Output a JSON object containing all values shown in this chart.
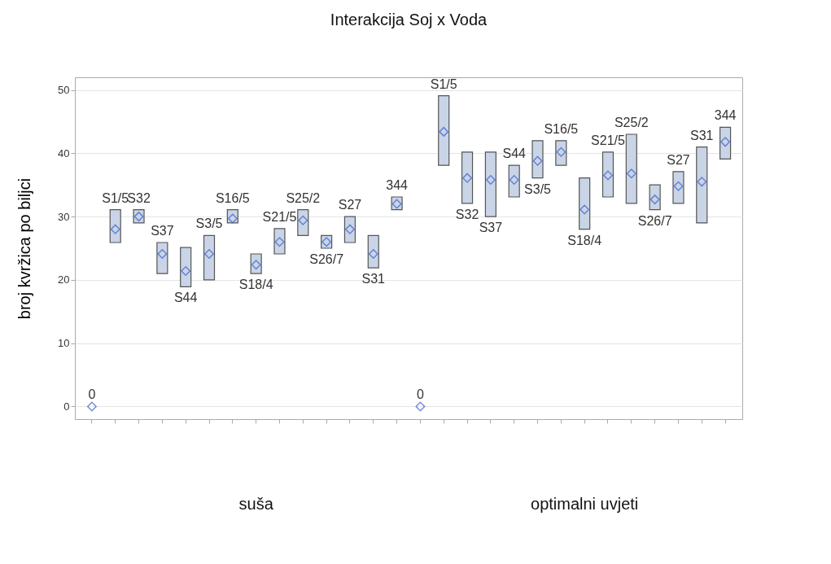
{
  "chart_data": {
    "type": "bar",
    "title": "Interakcija Soj x Voda",
    "ylabel": "broj kvržica po biljci",
    "categories": [
      null,
      null,
      null,
      null,
      null,
      null,
      null,
      null,
      null,
      null,
      null,
      null,
      null,
      null,
      null,
      null,
      null,
      null,
      null,
      null,
      null,
      null,
      null,
      null,
      null,
      null,
      null,
      null
    ],
    "ylim": [
      -2,
      52
    ],
    "yticks": [
      0,
      10,
      20,
      30,
      40,
      50
    ],
    "grid": "y",
    "tick_labels": "y",
    "series": [
      {
        "color": "#c9d5e6",
        "base": [
          null,
          25.9,
          29.0,
          21.0,
          18.9,
          20.0,
          29.0,
          21.0,
          24.1,
          27.0,
          25.0,
          25.9,
          21.9,
          31.1,
          null,
          38.1,
          32.1,
          30.0,
          33.1,
          36.1,
          38.1,
          28.0,
          33.1,
          32.1,
          31.1,
          32.1,
          29.0,
          39.1
        ],
        "values": [
          null,
          5.2,
          2.1,
          4.9,
          6.2,
          7.0,
          2.1,
          3.1,
          4.0,
          4.1,
          2.0,
          4.1,
          5.1,
          2.0,
          null,
          11.0,
          8.1,
          10.2,
          5.0,
          5.9,
          3.9,
          8.1,
          7.1,
          10.9,
          3.9,
          5.0,
          12.0,
          5.0
        ]
      },
      {
        "type": "scatter",
        "marker": "diamond",
        "color": "#3a5fcd",
        "values": [
          0,
          28.0,
          30.0,
          24.1,
          21.4,
          24.1,
          29.7,
          22.4,
          26.0,
          29.4,
          26.0,
          28.0,
          24.1,
          32.0,
          0,
          43.4,
          36.1,
          35.8,
          35.8,
          38.8,
          40.2,
          31.1,
          36.5,
          36.8,
          32.7,
          34.8,
          35.5,
          41.8
        ]
      }
    ],
    "annotations": [
      {
        "text": "0",
        "y": 0
      },
      {
        "text": "S1/5",
        "y": 31.1
      },
      {
        "text": "S32",
        "y": 31.1
      },
      {
        "text": "S37",
        "y": 25.9
      },
      {
        "text": "S44",
        "y": 18.9
      },
      {
        "text": "S3/5",
        "y": 27.0
      },
      {
        "text": "S16/5",
        "y": 31.1
      },
      {
        "text": "S18/4",
        "y": 21.0
      },
      {
        "text": "S21/5",
        "y": 28.1
      },
      {
        "text": "S25/2",
        "y": 31.1
      },
      {
        "text": "S26/7",
        "y": 25.0
      },
      {
        "text": "S27",
        "y": 30.0
      },
      {
        "text": "S31",
        "y": 21.9
      },
      {
        "text": "344",
        "y": 33.1
      },
      {
        "text": "0",
        "y": 0
      },
      {
        "text": "S1/5",
        "y": 49.1
      },
      {
        "text": "S32",
        "y": 32.1
      },
      {
        "text": "S37",
        "y": 30.0
      },
      {
        "text": "S44",
        "y": 38.1
      },
      {
        "text": "S3/5",
        "y": 36.1
      },
      {
        "text": "S16/5",
        "y": 42.0
      },
      {
        "text": "S18/4",
        "y": 28.0
      },
      {
        "text": "S21/5",
        "y": 40.2
      },
      {
        "text": "S25/2",
        "y": 43.0
      },
      {
        "text": "S26/7",
        "y": 31.1
      },
      {
        "text": "S27",
        "y": 37.1
      },
      {
        "text": "S31",
        "y": 41.0
      },
      {
        "text": "344",
        "y": 44.1
      },
      "suša",
      "optimalni uvjeti"
    ]
  }
}
